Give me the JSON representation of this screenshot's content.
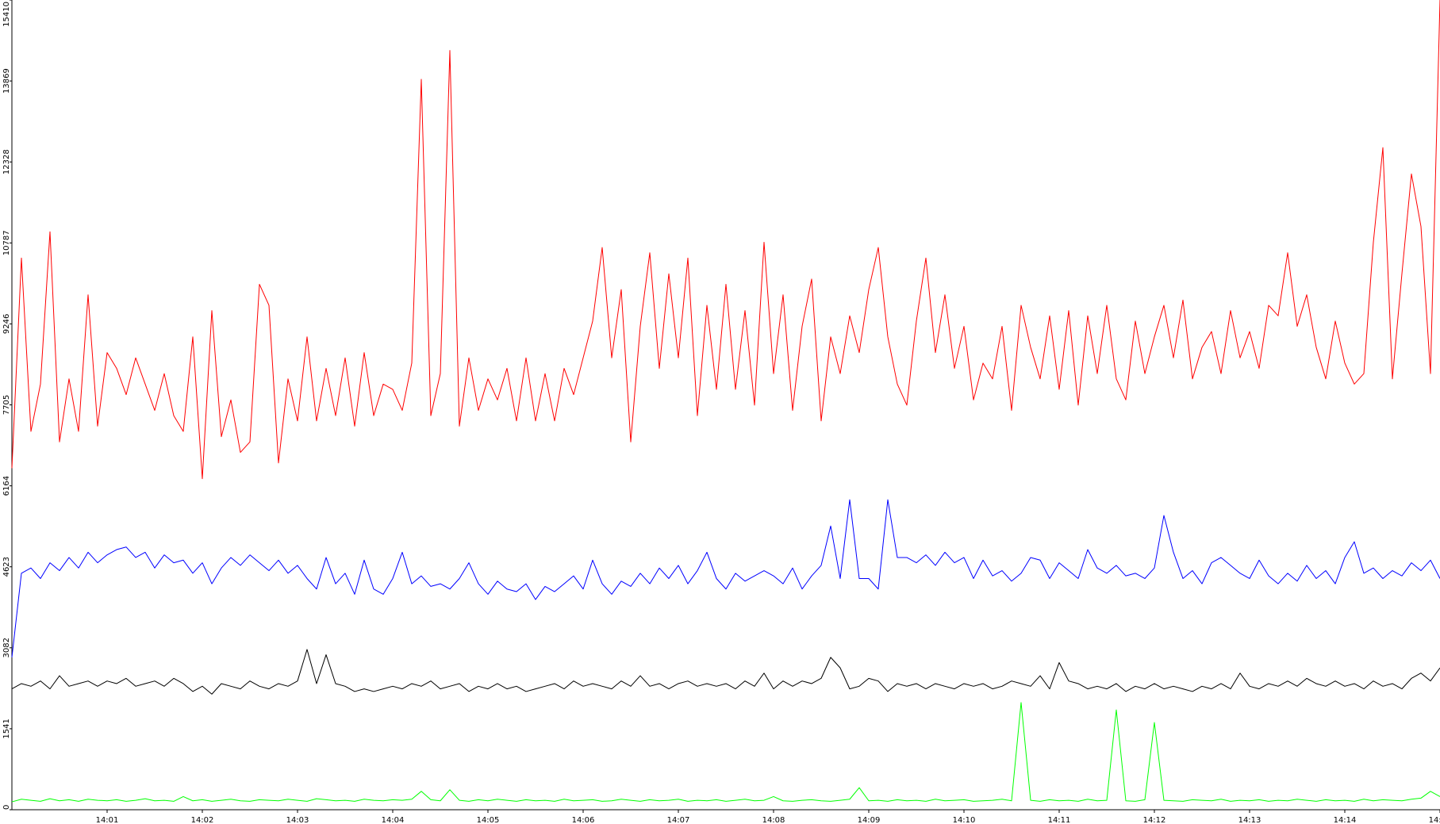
{
  "chart_data": {
    "type": "line",
    "categories": [
      null,
      null,
      null,
      null,
      null,
      null,
      null,
      null,
      null,
      null,
      "14:01",
      null,
      null,
      null,
      null,
      null,
      null,
      null,
      null,
      null,
      "14:02",
      null,
      null,
      null,
      null,
      null,
      null,
      null,
      null,
      null,
      "14:03",
      null,
      null,
      null,
      null,
      null,
      null,
      null,
      null,
      null,
      "14:04",
      null,
      null,
      null,
      null,
      null,
      null,
      null,
      null,
      null,
      "14:05",
      null,
      null,
      null,
      null,
      null,
      null,
      null,
      null,
      null,
      "14:06",
      null,
      null,
      null,
      null,
      null,
      null,
      null,
      null,
      null,
      "14:07",
      null,
      null,
      null,
      null,
      null,
      null,
      null,
      null,
      null,
      "14:08",
      null,
      null,
      null,
      null,
      null,
      null,
      null,
      null,
      null,
      "14:09",
      null,
      null,
      null,
      null,
      null,
      null,
      null,
      null,
      null,
      "14:10",
      null,
      null,
      null,
      null,
      null,
      null,
      null,
      null,
      null,
      "14:11",
      null,
      null,
      null,
      null,
      null,
      null,
      null,
      null,
      null,
      "14:12",
      null,
      null,
      null,
      null,
      null,
      null,
      null,
      null,
      null,
      "14:13",
      null,
      null,
      null,
      null,
      null,
      null,
      null,
      null,
      null,
      "14:14",
      null,
      null,
      null,
      null,
      null,
      null,
      null,
      null,
      null,
      "14:15"
    ],
    "series": [
      {
        "color": "#ff0000",
        "values": [
          6500,
          10500,
          7200,
          8100,
          11000,
          7000,
          8200,
          7200,
          9800,
          7300,
          8700,
          8400,
          7900,
          8600,
          8100,
          7600,
          8300,
          7500,
          7200,
          9000,
          6300,
          9500,
          7100,
          7800,
          6800,
          7000,
          10000,
          9600,
          6600,
          8200,
          7400,
          9000,
          7400,
          8400,
          7500,
          8600,
          7300,
          8700,
          7500,
          8100,
          8000,
          7600,
          8500,
          13900,
          7500,
          8300,
          14450,
          7300,
          8600,
          7600,
          8200,
          7800,
          8400,
          7400,
          8600,
          7400,
          8300,
          7400,
          8400,
          7900,
          8600,
          9300,
          10700,
          8600,
          9900,
          7000,
          9200,
          10600,
          8400,
          10200,
          8600,
          10500,
          7500,
          9600,
          8000,
          10000,
          8000,
          9500,
          7700,
          10800,
          8300,
          9800,
          7600,
          9200,
          10100,
          7400,
          9000,
          8300,
          9400,
          8700,
          9900,
          10700,
          9000,
          8100,
          7700,
          9300,
          10500,
          8700,
          9800,
          8400,
          9200,
          7800,
          8500,
          8200,
          9200,
          7600,
          9600,
          8800,
          8200,
          9400,
          8000,
          9500,
          7700,
          9400,
          8300,
          9600,
          8200,
          7800,
          9300,
          8300,
          9000,
          9600,
          8600,
          9700,
          8200,
          8800,
          9100,
          8300,
          9500,
          8600,
          9100,
          8400,
          9600,
          9400,
          10600,
          9200,
          9800,
          8800,
          8200,
          9300,
          8500,
          8100,
          8300,
          10800,
          12600,
          8200,
          10200,
          12100,
          11100,
          8300,
          15410
        ]
      },
      {
        "color": "#0000ff",
        "values": [
          2900,
          4500,
          4600,
          4400,
          4700,
          4550,
          4800,
          4600,
          4900,
          4700,
          4850,
          4950,
          5000,
          4800,
          4900,
          4600,
          4850,
          4700,
          4750,
          4500,
          4700,
          4300,
          4600,
          4800,
          4650,
          4850,
          4700,
          4550,
          4750,
          4500,
          4650,
          4400,
          4200,
          4800,
          4300,
          4500,
          4100,
          4750,
          4200,
          4100,
          4400,
          4900,
          4300,
          4450,
          4250,
          4300,
          4200,
          4400,
          4700,
          4300,
          4100,
          4350,
          4200,
          4150,
          4300,
          4000,
          4250,
          4150,
          4300,
          4450,
          4200,
          4750,
          4300,
          4100,
          4350,
          4250,
          4500,
          4300,
          4600,
          4400,
          4650,
          4300,
          4550,
          4900,
          4400,
          4200,
          4500,
          4350,
          4450,
          4550,
          4450,
          4300,
          4600,
          4200,
          4450,
          4650,
          5400,
          4400,
          5900,
          4400,
          4400,
          4200,
          5900,
          4800,
          4800,
          4700,
          4850,
          4650,
          4900,
          4700,
          4800,
          4400,
          4750,
          4450,
          4550,
          4350,
          4500,
          4800,
          4750,
          4400,
          4700,
          4550,
          4400,
          4950,
          4600,
          4500,
          4650,
          4450,
          4500,
          4400,
          4600,
          5600,
          4900,
          4400,
          4550,
          4300,
          4700,
          4800,
          4650,
          4500,
          4400,
          4750,
          4450,
          4300,
          4500,
          4350,
          4650,
          4400,
          4550,
          4300,
          4800,
          5100,
          4500,
          4600,
          4400,
          4550,
          4450,
          4700,
          4550,
          4750,
          4400
        ]
      },
      {
        "color": "#000000",
        "values": [
          2300,
          2400,
          2350,
          2450,
          2300,
          2550,
          2350,
          2400,
          2450,
          2350,
          2450,
          2400,
          2500,
          2350,
          2400,
          2450,
          2350,
          2500,
          2400,
          2250,
          2350,
          2200,
          2400,
          2350,
          2300,
          2450,
          2350,
          2300,
          2400,
          2350,
          2450,
          3050,
          2400,
          2950,
          2400,
          2350,
          2250,
          2300,
          2250,
          2300,
          2350,
          2300,
          2400,
          2350,
          2450,
          2300,
          2350,
          2400,
          2250,
          2350,
          2300,
          2400,
          2300,
          2350,
          2250,
          2300,
          2350,
          2400,
          2300,
          2450,
          2350,
          2400,
          2350,
          2300,
          2450,
          2350,
          2550,
          2350,
          2400,
          2300,
          2400,
          2450,
          2350,
          2400,
          2350,
          2400,
          2300,
          2450,
          2350,
          2600,
          2300,
          2450,
          2350,
          2450,
          2400,
          2500,
          2900,
          2700,
          2300,
          2350,
          2500,
          2450,
          2250,
          2400,
          2350,
          2400,
          2300,
          2400,
          2350,
          2300,
          2400,
          2350,
          2400,
          2300,
          2350,
          2450,
          2400,
          2350,
          2550,
          2300,
          2800,
          2450,
          2400,
          2300,
          2350,
          2300,
          2400,
          2250,
          2350,
          2300,
          2400,
          2300,
          2350,
          2300,
          2250,
          2350,
          2300,
          2400,
          2300,
          2600,
          2350,
          2300,
          2400,
          2350,
          2450,
          2350,
          2500,
          2400,
          2350,
          2450,
          2350,
          2400,
          2300,
          2450,
          2350,
          2400,
          2300,
          2500,
          2600,
          2450,
          2700
        ]
      },
      {
        "color": "#00ff00",
        "values": [
          150,
          200,
          180,
          160,
          210,
          170,
          190,
          160,
          200,
          180,
          170,
          190,
          160,
          180,
          210,
          170,
          180,
          160,
          250,
          170,
          190,
          160,
          180,
          200,
          170,
          160,
          190,
          180,
          170,
          200,
          180,
          160,
          210,
          190,
          170,
          180,
          160,
          200,
          180,
          170,
          190,
          180,
          200,
          350,
          190,
          170,
          380,
          180,
          160,
          190,
          170,
          200,
          180,
          160,
          190,
          170,
          180,
          160,
          200,
          170,
          180,
          190,
          160,
          170,
          200,
          180,
          160,
          190,
          170,
          180,
          200,
          160,
          180,
          170,
          190,
          160,
          180,
          200,
          170,
          180,
          250,
          170,
          160,
          180,
          190,
          170,
          160,
          180,
          200,
          420,
          170,
          180,
          160,
          190,
          170,
          180,
          160,
          200,
          170,
          180,
          190,
          160,
          170,
          180,
          200,
          170,
          2040,
          180,
          160,
          190,
          170,
          180,
          160,
          200,
          170,
          180,
          1900,
          170,
          160,
          190,
          1660,
          180,
          170,
          160,
          190,
          180,
          170,
          200,
          160,
          180,
          170,
          190,
          160,
          180,
          170,
          200,
          180,
          160,
          190,
          170,
          180,
          160,
          200,
          170,
          190,
          180,
          170,
          200,
          220,
          350,
          250
        ]
      }
    ],
    "ylim": [
      0,
      15410
    ],
    "yticks": [
      0,
      1541,
      3082,
      4623,
      6164,
      7705,
      9246,
      10787,
      12328,
      13869,
      15410
    ]
  }
}
